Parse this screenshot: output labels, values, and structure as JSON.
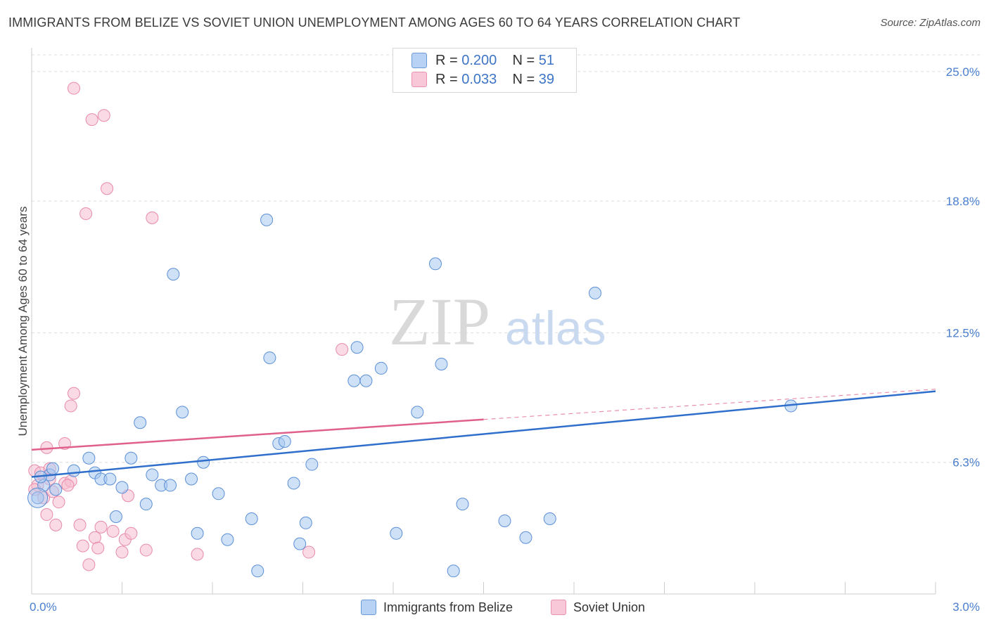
{
  "header": {
    "title": "IMMIGRANTS FROM BELIZE VS SOVIET UNION UNEMPLOYMENT AMONG AGES 60 TO 64 YEARS CORRELATION CHART",
    "source": "Source: ZipAtlas.com"
  },
  "watermark": {
    "zip": "ZIP",
    "atlas": "atlas"
  },
  "legend": {
    "rows": [
      {
        "r_label": "R =",
        "r_value": "0.200",
        "n_label": "N =",
        "n_value": "51"
      },
      {
        "r_label": "R =",
        "r_value": "0.033",
        "n_label": "N =",
        "n_value": "39"
      }
    ]
  },
  "bottom_legend": {
    "series1": "Immigrants from Belize",
    "series2": "Soviet Union"
  },
  "colors": {
    "blue_fill": "#a8c8f0",
    "blue_stroke": "#5b8fd6",
    "blue_line": "#2f6fcb",
    "pink_fill": "#f6bdd0",
    "pink_stroke": "#e88aaa",
    "pink_line": "#e0608c",
    "tick_text": "#4a7fcf",
    "grid": "#dddddd"
  },
  "chart_data": {
    "type": "scatter",
    "title": "IMMIGRANTS FROM BELIZE VS SOVIET UNION UNEMPLOYMENT AMONG AGES 60 TO 64 YEARS CORRELATION CHART",
    "xlabel": "",
    "ylabel": "Unemployment Among Ages 60 to 64 years",
    "xlim": [
      0,
      3.0
    ],
    "ylim": [
      0,
      25.8
    ],
    "x_tick_labels": [
      "0.0%",
      "3.0%"
    ],
    "y_ticks": [
      6.3,
      12.5,
      18.8,
      25.0
    ],
    "y_tick_labels": [
      "6.3%",
      "12.5%",
      "18.8%",
      "25.0%"
    ],
    "grid": true,
    "series": [
      {
        "name": "Immigrants from Belize",
        "R": 0.2,
        "N": 51,
        "trend": {
          "x0": 0.0,
          "y0": 5.6,
          "x1": 3.0,
          "y1": 9.7,
          "dashed_from": null
        },
        "points": [
          [
            0.02,
            4.6
          ],
          [
            0.04,
            5.2
          ],
          [
            0.06,
            5.7
          ],
          [
            0.07,
            6.0
          ],
          [
            0.08,
            5.0
          ],
          [
            0.14,
            5.9
          ],
          [
            0.19,
            6.5
          ],
          [
            0.21,
            5.8
          ],
          [
            0.23,
            5.5
          ],
          [
            0.26,
            5.5
          ],
          [
            0.28,
            3.7
          ],
          [
            0.3,
            5.1
          ],
          [
            0.33,
            6.5
          ],
          [
            0.36,
            8.2
          ],
          [
            0.38,
            4.3
          ],
          [
            0.4,
            5.7
          ],
          [
            0.43,
            5.2
          ],
          [
            0.46,
            5.2
          ],
          [
            0.47,
            15.3
          ],
          [
            0.5,
            8.7
          ],
          [
            0.53,
            5.5
          ],
          [
            0.55,
            2.9
          ],
          [
            0.57,
            6.3
          ],
          [
            0.62,
            4.8
          ],
          [
            0.65,
            2.6
          ],
          [
            0.73,
            3.6
          ],
          [
            0.75,
            1.1
          ],
          [
            0.78,
            17.9
          ],
          [
            0.79,
            11.3
          ],
          [
            0.82,
            7.2
          ],
          [
            0.84,
            7.3
          ],
          [
            0.87,
            5.3
          ],
          [
            0.89,
            2.4
          ],
          [
            0.91,
            3.4
          ],
          [
            0.93,
            6.2
          ],
          [
            1.07,
            10.2
          ],
          [
            1.08,
            11.8
          ],
          [
            1.11,
            10.2
          ],
          [
            1.16,
            10.8
          ],
          [
            1.21,
            2.9
          ],
          [
            1.28,
            8.7
          ],
          [
            1.34,
            15.8
          ],
          [
            1.36,
            11.0
          ],
          [
            1.4,
            1.1
          ],
          [
            1.43,
            4.3
          ],
          [
            1.57,
            3.5
          ],
          [
            1.64,
            2.7
          ],
          [
            1.72,
            3.6
          ],
          [
            1.87,
            14.4
          ],
          [
            2.52,
            9.0
          ],
          [
            0.03,
            5.6
          ]
        ]
      },
      {
        "name": "Soviet Union",
        "R": 0.033,
        "N": 39,
        "trend": {
          "x0": 0.0,
          "y0": 6.9,
          "x1": 3.0,
          "y1": 9.8,
          "dashed_from": 1.5
        },
        "points": [
          [
            0.01,
            5.9
          ],
          [
            0.02,
            5.2
          ],
          [
            0.03,
            5.8
          ],
          [
            0.04,
            4.6
          ],
          [
            0.05,
            3.8
          ],
          [
            0.05,
            7.0
          ],
          [
            0.06,
            6.0
          ],
          [
            0.07,
            4.9
          ],
          [
            0.08,
            3.3
          ],
          [
            0.09,
            4.4
          ],
          [
            0.11,
            7.2
          ],
          [
            0.11,
            5.3
          ],
          [
            0.13,
            5.4
          ],
          [
            0.13,
            9.0
          ],
          [
            0.14,
            9.6
          ],
          [
            0.14,
            24.2
          ],
          [
            0.16,
            3.3
          ],
          [
            0.17,
            2.3
          ],
          [
            0.18,
            18.2
          ],
          [
            0.19,
            1.4
          ],
          [
            0.2,
            22.7
          ],
          [
            0.21,
            2.7
          ],
          [
            0.23,
            3.2
          ],
          [
            0.24,
            22.9
          ],
          [
            0.25,
            19.4
          ],
          [
            0.27,
            3.0
          ],
          [
            0.3,
            2.0
          ],
          [
            0.31,
            2.6
          ],
          [
            0.32,
            4.7
          ],
          [
            0.33,
            2.9
          ],
          [
            0.38,
            2.1
          ],
          [
            0.4,
            18.0
          ],
          [
            0.55,
            1.9
          ],
          [
            0.92,
            2.0
          ],
          [
            1.03,
            11.7
          ],
          [
            0.01,
            5.0
          ],
          [
            0.06,
            5.5
          ],
          [
            0.12,
            5.2
          ],
          [
            0.22,
            2.2
          ]
        ]
      }
    ]
  }
}
